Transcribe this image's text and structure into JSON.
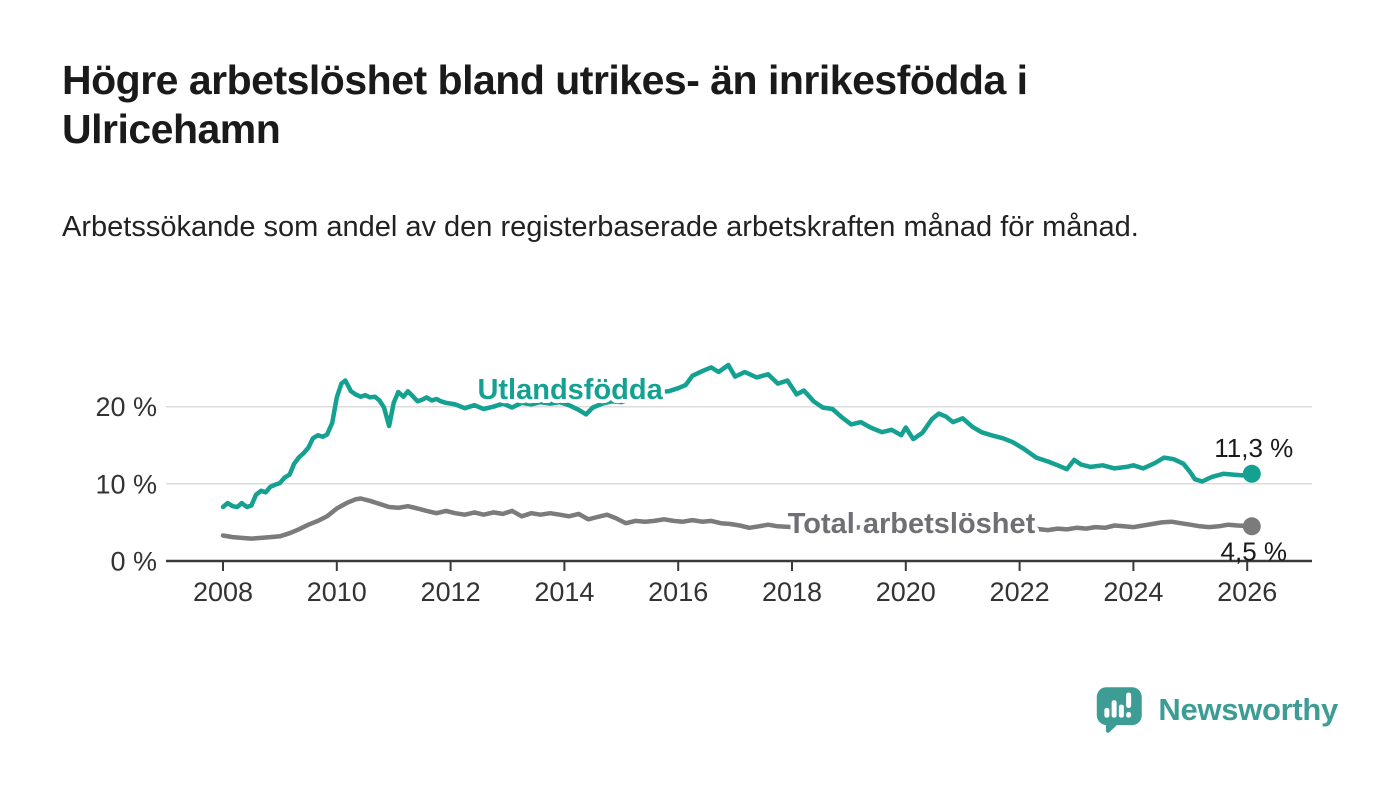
{
  "header": {
    "title": "Högre arbetslöshet bland utrikes- än inrikesfödda i Ulricehamn",
    "subtitle": "Arbetssökande som andel av den registerbaserade arbetskraften månad för månad."
  },
  "chart_data": {
    "type": "line",
    "title": "Högre arbetslöshet bland utrikes- än inrikesfödda i Ulricehamn",
    "subtitle": "Arbetssökande som andel av den registerbaserade arbetskraften månad för månad.",
    "unit": "%",
    "x_axis": {
      "ticks": [
        2008,
        2010,
        2012,
        2014,
        2016,
        2018,
        2020,
        2022,
        2024,
        2026
      ],
      "range": [
        2007.0,
        2027.1
      ]
    },
    "y_axis": {
      "ticks": [
        {
          "value": 0,
          "label": "0 %"
        },
        {
          "value": 10,
          "label": "10 %"
        },
        {
          "value": 20,
          "label": "20 %"
        }
      ],
      "range": [
        0,
        26
      ],
      "gridlines": [
        10,
        20
      ]
    },
    "style": {
      "grid_color": "#dcdcdc",
      "axis_color": "#3a3a3a",
      "tick_label_color": "#333333",
      "value_label_color": "#1a1a1a"
    },
    "series": [
      {
        "id": "utlandsfodda",
        "name": "Utlandsfödda",
        "color": "#14a192",
        "label_color": "#14a192",
        "end_label": "11,3 %",
        "end_label_position": "above",
        "label_anchor": {
          "x": 2014.1,
          "y": 21.0
        },
        "points": [
          [
            2008.0,
            7.0
          ],
          [
            2008.08,
            7.5
          ],
          [
            2008.17,
            7.1
          ],
          [
            2008.25,
            7.0
          ],
          [
            2008.33,
            7.5
          ],
          [
            2008.42,
            7.0
          ],
          [
            2008.5,
            7.2
          ],
          [
            2008.58,
            8.6
          ],
          [
            2008.67,
            9.1
          ],
          [
            2008.75,
            8.9
          ],
          [
            2008.83,
            9.6
          ],
          [
            2008.92,
            9.9
          ],
          [
            2009.0,
            10.1
          ],
          [
            2009.08,
            10.8
          ],
          [
            2009.17,
            11.2
          ],
          [
            2009.25,
            12.6
          ],
          [
            2009.33,
            13.4
          ],
          [
            2009.42,
            14.0
          ],
          [
            2009.5,
            14.7
          ],
          [
            2009.58,
            15.9
          ],
          [
            2009.67,
            16.3
          ],
          [
            2009.75,
            16.1
          ],
          [
            2009.83,
            16.4
          ],
          [
            2009.92,
            17.9
          ],
          [
            2010.0,
            21.2
          ],
          [
            2010.08,
            23.0
          ],
          [
            2010.15,
            23.4
          ],
          [
            2010.25,
            22.0
          ],
          [
            2010.33,
            21.6
          ],
          [
            2010.42,
            21.3
          ],
          [
            2010.5,
            21.5
          ],
          [
            2010.58,
            21.2
          ],
          [
            2010.67,
            21.3
          ],
          [
            2010.75,
            20.8
          ],
          [
            2010.83,
            19.9
          ],
          [
            2010.92,
            17.5
          ],
          [
            2011.0,
            20.5
          ],
          [
            2011.08,
            21.9
          ],
          [
            2011.17,
            21.3
          ],
          [
            2011.25,
            22.0
          ],
          [
            2011.33,
            21.4
          ],
          [
            2011.42,
            20.7
          ],
          [
            2011.5,
            20.9
          ],
          [
            2011.58,
            21.2
          ],
          [
            2011.67,
            20.8
          ],
          [
            2011.75,
            21.0
          ],
          [
            2011.83,
            20.7
          ],
          [
            2011.92,
            20.5
          ],
          [
            2012.08,
            20.3
          ],
          [
            2012.25,
            19.8
          ],
          [
            2012.42,
            20.2
          ],
          [
            2012.58,
            19.7
          ],
          [
            2012.75,
            20.0
          ],
          [
            2012.92,
            20.4
          ],
          [
            2013.08,
            19.9
          ],
          [
            2013.25,
            20.5
          ],
          [
            2013.42,
            20.3
          ],
          [
            2013.58,
            20.6
          ],
          [
            2013.75,
            20.4
          ],
          [
            2013.92,
            20.6
          ],
          [
            2014.08,
            20.2
          ],
          [
            2014.25,
            19.6
          ],
          [
            2014.38,
            19.0
          ],
          [
            2014.5,
            19.9
          ],
          [
            2014.67,
            20.4
          ],
          [
            2014.83,
            20.7
          ],
          [
            2015.0,
            20.6
          ],
          [
            2015.17,
            21.0
          ],
          [
            2015.33,
            21.7
          ],
          [
            2015.5,
            22.3
          ],
          [
            2015.67,
            21.9
          ],
          [
            2015.83,
            22.0
          ],
          [
            2016.0,
            22.4
          ],
          [
            2016.13,
            22.8
          ],
          [
            2016.25,
            24.0
          ],
          [
            2016.42,
            24.6
          ],
          [
            2016.58,
            25.1
          ],
          [
            2016.71,
            24.5
          ],
          [
            2016.88,
            25.4
          ],
          [
            2017.0,
            23.9
          ],
          [
            2017.17,
            24.5
          ],
          [
            2017.38,
            23.8
          ],
          [
            2017.58,
            24.2
          ],
          [
            2017.75,
            23.0
          ],
          [
            2017.92,
            23.4
          ],
          [
            2018.08,
            21.6
          ],
          [
            2018.21,
            22.1
          ],
          [
            2018.38,
            20.7
          ],
          [
            2018.54,
            19.9
          ],
          [
            2018.71,
            19.7
          ],
          [
            2018.88,
            18.6
          ],
          [
            2019.04,
            17.7
          ],
          [
            2019.21,
            18.0
          ],
          [
            2019.38,
            17.3
          ],
          [
            2019.58,
            16.7
          ],
          [
            2019.75,
            17.0
          ],
          [
            2019.92,
            16.3
          ],
          [
            2020.0,
            17.3
          ],
          [
            2020.13,
            15.8
          ],
          [
            2020.29,
            16.6
          ],
          [
            2020.46,
            18.4
          ],
          [
            2020.58,
            19.1
          ],
          [
            2020.71,
            18.7
          ],
          [
            2020.83,
            18.0
          ],
          [
            2021.0,
            18.5
          ],
          [
            2021.17,
            17.4
          ],
          [
            2021.33,
            16.7
          ],
          [
            2021.5,
            16.3
          ],
          [
            2021.71,
            15.9
          ],
          [
            2021.88,
            15.4
          ],
          [
            2022.08,
            14.5
          ],
          [
            2022.29,
            13.4
          ],
          [
            2022.5,
            12.9
          ],
          [
            2022.67,
            12.4
          ],
          [
            2022.83,
            11.9
          ],
          [
            2022.96,
            13.1
          ],
          [
            2023.08,
            12.5
          ],
          [
            2023.25,
            12.2
          ],
          [
            2023.46,
            12.4
          ],
          [
            2023.67,
            12.0
          ],
          [
            2023.88,
            12.2
          ],
          [
            2024.0,
            12.4
          ],
          [
            2024.17,
            12.0
          ],
          [
            2024.38,
            12.7
          ],
          [
            2024.54,
            13.4
          ],
          [
            2024.71,
            13.2
          ],
          [
            2024.88,
            12.6
          ],
          [
            2025.0,
            11.5
          ],
          [
            2025.08,
            10.6
          ],
          [
            2025.21,
            10.3
          ],
          [
            2025.38,
            10.9
          ],
          [
            2025.58,
            11.3
          ],
          [
            2025.75,
            11.2
          ],
          [
            2025.92,
            11.1
          ],
          [
            2026.08,
            11.3
          ]
        ]
      },
      {
        "id": "total-arbetsloshet",
        "name": "Total arbetslöshet",
        "color": "#7b7b7b",
        "label_color": "#6f6f74",
        "end_label": "4,5 %",
        "end_label_position": "below",
        "label_anchor": {
          "x": 2020.1,
          "y": 3.6
        },
        "points": [
          [
            2008.0,
            3.3
          ],
          [
            2008.17,
            3.1
          ],
          [
            2008.33,
            3.0
          ],
          [
            2008.5,
            2.9
          ],
          [
            2008.67,
            3.0
          ],
          [
            2008.83,
            3.1
          ],
          [
            2009.0,
            3.2
          ],
          [
            2009.17,
            3.6
          ],
          [
            2009.33,
            4.1
          ],
          [
            2009.5,
            4.7
          ],
          [
            2009.67,
            5.2
          ],
          [
            2009.83,
            5.8
          ],
          [
            2010.0,
            6.8
          ],
          [
            2010.17,
            7.5
          ],
          [
            2010.33,
            8.0
          ],
          [
            2010.42,
            8.1
          ],
          [
            2010.58,
            7.8
          ],
          [
            2010.75,
            7.4
          ],
          [
            2010.92,
            7.0
          ],
          [
            2011.08,
            6.9
          ],
          [
            2011.25,
            7.1
          ],
          [
            2011.42,
            6.8
          ],
          [
            2011.58,
            6.5
          ],
          [
            2011.75,
            6.2
          ],
          [
            2011.92,
            6.5
          ],
          [
            2012.08,
            6.2
          ],
          [
            2012.25,
            6.0
          ],
          [
            2012.42,
            6.3
          ],
          [
            2012.58,
            6.0
          ],
          [
            2012.75,
            6.3
          ],
          [
            2012.92,
            6.1
          ],
          [
            2013.08,
            6.5
          ],
          [
            2013.25,
            5.8
          ],
          [
            2013.42,
            6.2
          ],
          [
            2013.58,
            6.0
          ],
          [
            2013.75,
            6.2
          ],
          [
            2013.92,
            6.0
          ],
          [
            2014.08,
            5.8
          ],
          [
            2014.25,
            6.1
          ],
          [
            2014.42,
            5.4
          ],
          [
            2014.58,
            5.7
          ],
          [
            2014.75,
            6.0
          ],
          [
            2014.92,
            5.5
          ],
          [
            2015.08,
            4.9
          ],
          [
            2015.25,
            5.2
          ],
          [
            2015.42,
            5.1
          ],
          [
            2015.58,
            5.2
          ],
          [
            2015.75,
            5.4
          ],
          [
            2015.92,
            5.2
          ],
          [
            2016.08,
            5.1
          ],
          [
            2016.25,
            5.3
          ],
          [
            2016.42,
            5.1
          ],
          [
            2016.58,
            5.2
          ],
          [
            2016.75,
            4.9
          ],
          [
            2016.92,
            4.8
          ],
          [
            2017.08,
            4.6
          ],
          [
            2017.25,
            4.3
          ],
          [
            2017.42,
            4.5
          ],
          [
            2017.58,
            4.7
          ],
          [
            2017.75,
            4.5
          ],
          [
            2018.0,
            4.4
          ],
          [
            2018.33,
            4.3
          ],
          [
            2018.67,
            4.2
          ],
          [
            2019.0,
            4.3
          ],
          [
            2019.33,
            4.4
          ],
          [
            2019.67,
            4.5
          ],
          [
            2020.0,
            4.8
          ],
          [
            2020.25,
            5.4
          ],
          [
            2020.5,
            5.6
          ],
          [
            2020.75,
            5.5
          ],
          [
            2021.0,
            5.3
          ],
          [
            2021.25,
            5.1
          ],
          [
            2021.5,
            4.9
          ],
          [
            2021.75,
            4.7
          ],
          [
            2022.0,
            4.5
          ],
          [
            2022.25,
            4.2
          ],
          [
            2022.5,
            4.0
          ],
          [
            2022.67,
            4.2
          ],
          [
            2022.83,
            4.1
          ],
          [
            2023.0,
            4.3
          ],
          [
            2023.17,
            4.2
          ],
          [
            2023.33,
            4.4
          ],
          [
            2023.5,
            4.3
          ],
          [
            2023.67,
            4.6
          ],
          [
            2023.83,
            4.5
          ],
          [
            2024.0,
            4.4
          ],
          [
            2024.17,
            4.6
          ],
          [
            2024.33,
            4.8
          ],
          [
            2024.5,
            5.0
          ],
          [
            2024.67,
            5.1
          ],
          [
            2024.83,
            4.9
          ],
          [
            2025.0,
            4.7
          ],
          [
            2025.17,
            4.5
          ],
          [
            2025.33,
            4.4
          ],
          [
            2025.5,
            4.5
          ],
          [
            2025.67,
            4.7
          ],
          [
            2025.83,
            4.6
          ],
          [
            2026.08,
            4.5
          ]
        ]
      }
    ],
    "legend_position": "inline-labels",
    "grid": true
  },
  "footer": {
    "brand": "Newsworthy",
    "brand_color": "#3d9d95",
    "logo_icon": "bar-chart-speech-bubble-icon"
  }
}
